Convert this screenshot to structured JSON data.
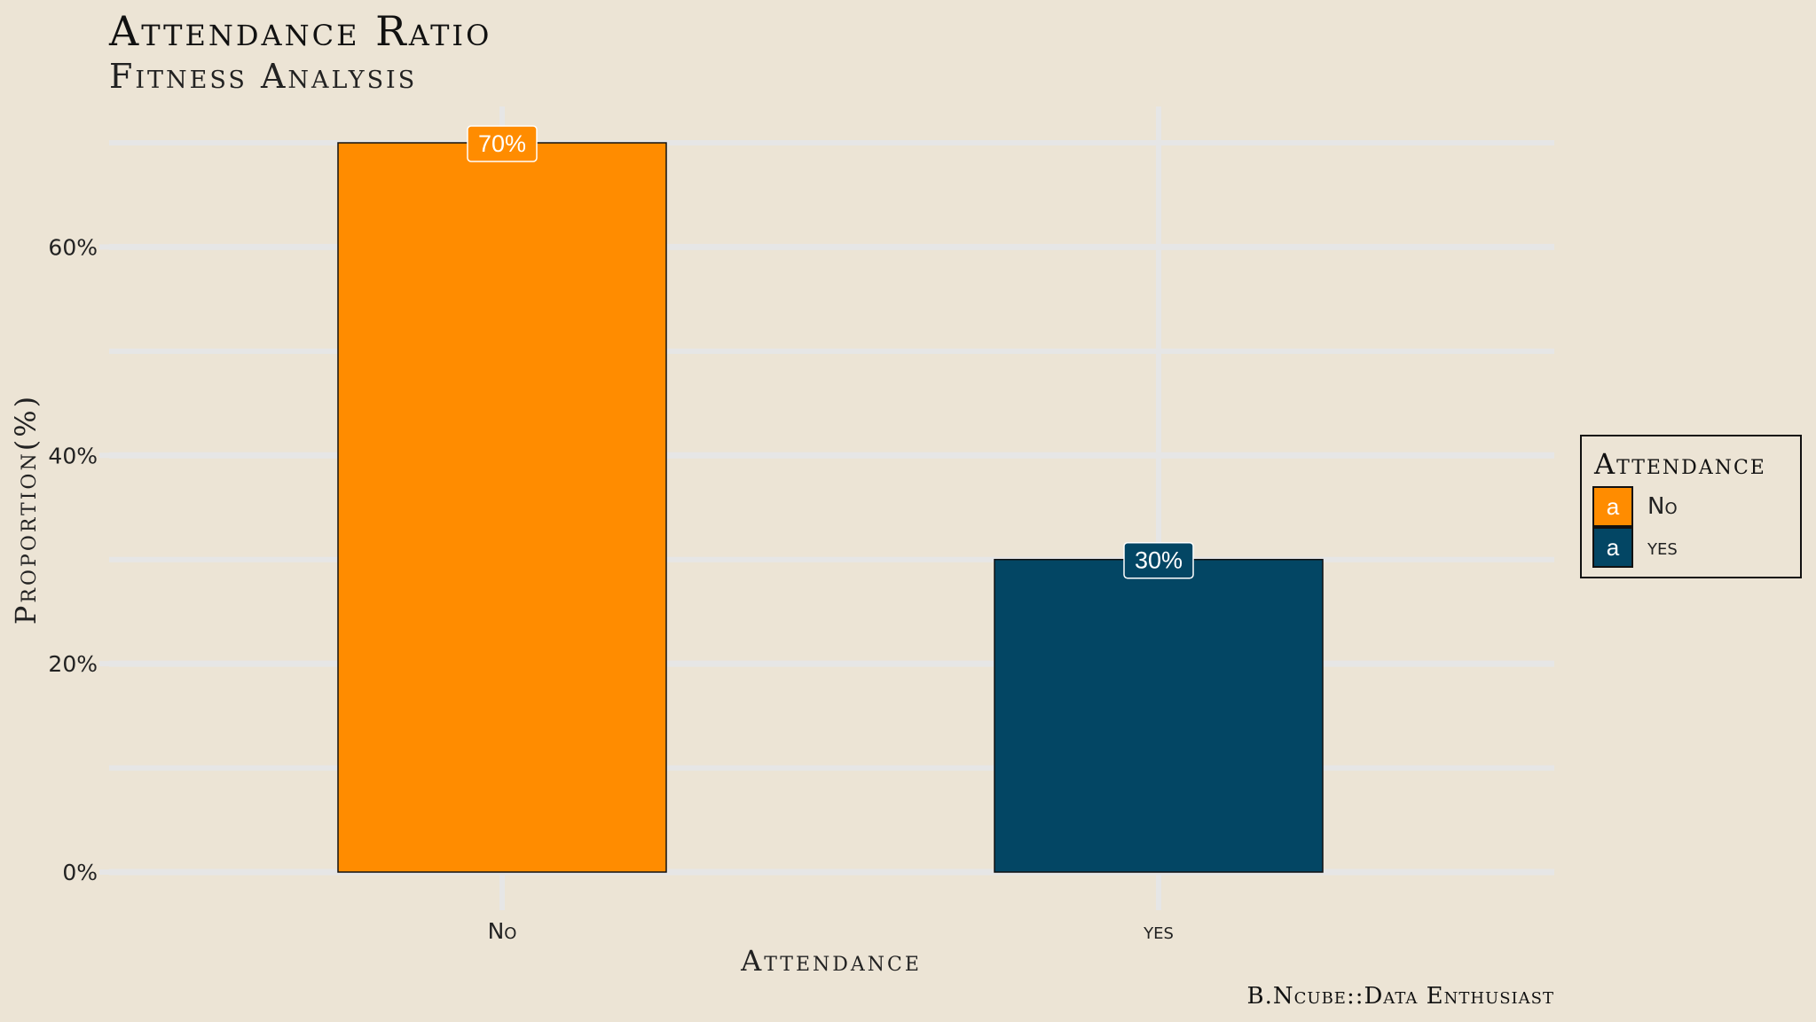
{
  "header": {
    "title": "Attendance Ratio",
    "subtitle": "Fitness Analysis"
  },
  "caption": "B.Ncube::Data Enthusiast",
  "legend": {
    "title": "Attendance",
    "key_glyph": "a",
    "items": [
      {
        "label": "No",
        "color": "#ff8c00"
      },
      {
        "label": "yes",
        "color": "#034664"
      }
    ]
  },
  "chart_data": {
    "type": "bar",
    "categories": [
      "No",
      "yes"
    ],
    "values": [
      70,
      30
    ],
    "value_labels": [
      "70%",
      "30%"
    ],
    "colors": [
      "#ff8c00",
      "#034664"
    ],
    "xlabel": "Attendance",
    "ylabel": "Proportion(%)",
    "ylim": [
      0,
      72
    ],
    "yticks": [
      0,
      20,
      40,
      60
    ],
    "ytick_labels": [
      "0%",
      "20%",
      "40%",
      "60%"
    ],
    "grid": true,
    "legend_position": "right"
  }
}
